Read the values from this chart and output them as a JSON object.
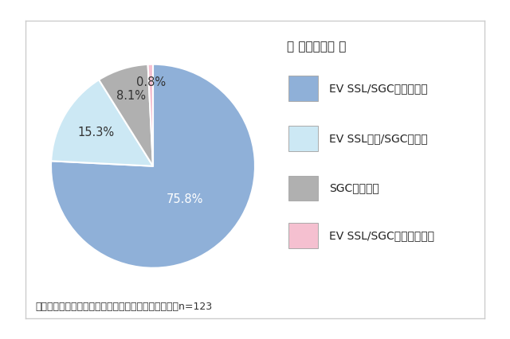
{
  "values": [
    75.8,
    15.3,
    8.1,
    0.8
  ],
  "labels": [
    "75.8%",
    "15.3%",
    "8.1%",
    "0.8%"
  ],
  "colors": [
    "#8fb0d8",
    "#cce8f4",
    "#b0b0b0",
    "#f5c0d0"
  ],
  "legend_title": "【 安全性評価 】",
  "legend_labels": [
    "EV SSL/SGCともに対応",
    "EV SSL対応/SGC非対応",
    "SGCのみ対応",
    "EV SSL/SGCともに非対応"
  ],
  "footnote": "＊インターネットバンキングを提供している銀行　　n=123",
  "background_color": "#ffffff",
  "border_color": "#cccccc",
  "startangle": 90,
  "label_fontsize": 10.5,
  "legend_title_fontsize": 11,
  "legend_fontsize": 10,
  "footnote_fontsize": 9
}
